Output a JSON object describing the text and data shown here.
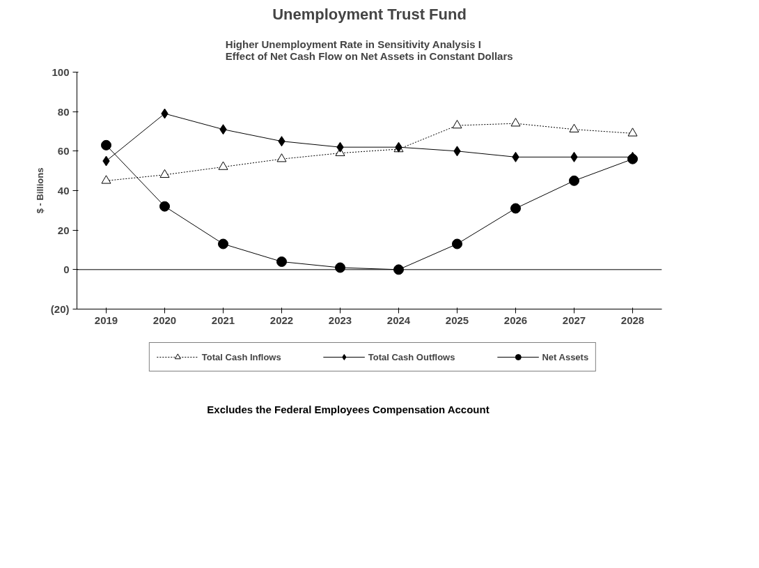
{
  "chart_data": {
    "type": "line",
    "title": "Unemployment Trust Fund",
    "subtitle": "Higher Unemployment Rate in Sensitivity Analysis I\nEffect of Net Cash Flow on Net Assets in Constant Dollars",
    "ylabel": "$ - Billions",
    "categories": [
      "2019",
      "2020",
      "2021",
      "2022",
      "2023",
      "2024",
      "2025",
      "2026",
      "2027",
      "2028"
    ],
    "series": [
      {
        "name": "Total Cash Inflows",
        "color": "#000000",
        "marker": "triangle",
        "line_style": "dotted",
        "values": [
          45,
          48,
          52,
          56,
          59,
          61,
          73,
          74,
          71,
          69
        ]
      },
      {
        "name": "Total Cash Outflows",
        "color": "#000000",
        "marker": "diamond",
        "line_style": "solid",
        "values": [
          55,
          79,
          71,
          65,
          62,
          62,
          60,
          57,
          57,
          57
        ]
      },
      {
        "name": "Net Assets",
        "color": "#000000",
        "marker": "circle",
        "line_style": "solid",
        "values": [
          63,
          32,
          13,
          4,
          1,
          0,
          13,
          31,
          45,
          56
        ]
      }
    ],
    "ylim": [
      -20,
      100
    ],
    "yticks": [
      {
        "value": -20,
        "label": "(20)"
      },
      0,
      20,
      40,
      60,
      80,
      100
    ],
    "grid": false,
    "legend": "bottom",
    "ref_lines": [
      {
        "axis": "y",
        "value": 0,
        "color": "#000000"
      }
    ],
    "annotations": [
      "Excludes the Federal Employees Compensation Account"
    ]
  }
}
